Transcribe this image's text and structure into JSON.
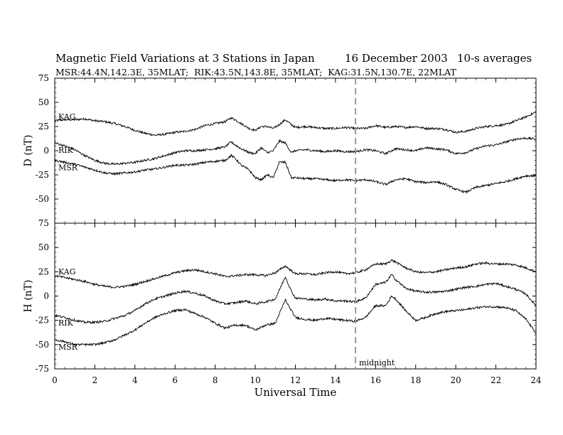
{
  "header": {
    "title": "Magnetic Field Variations at 3 Stations in Japan",
    "date": "16 December 2003",
    "averaging": "10-s averages",
    "stations": "MSR:44.4N,142.3E, 35MLAT;  RIK:43.5N,143.8E, 35MLAT;  KAG:31.5N,130.7E, 22MLAT"
  },
  "chart_data": [
    {
      "type": "line",
      "panel": "D",
      "ylabel": "D (nT)",
      "ylim": [
        -75,
        75
      ],
      "yticks": [
        -75,
        -50,
        -25,
        0,
        25,
        50,
        75
      ],
      "xlim": [
        0,
        24
      ],
      "series": [
        {
          "name": "KAG",
          "x": [
            0,
            0.5,
            1,
            1.5,
            2,
            2.5,
            3,
            3.5,
            4,
            4.5,
            5,
            5.5,
            6,
            6.5,
            7,
            7.5,
            8,
            8.5,
            8.8,
            9,
            9.3,
            9.7,
            10,
            10.3,
            10.6,
            10.9,
            11.2,
            11.5,
            11.8,
            12,
            12.5,
            13,
            13.5,
            14,
            14.5,
            15,
            15.5,
            16,
            16.5,
            17,
            17.5,
            18,
            18.5,
            19,
            19.5,
            20,
            20.5,
            21,
            21.5,
            22,
            22.5,
            23,
            23.5,
            24
          ],
          "y": [
            31,
            32,
            32,
            33,
            31,
            30,
            28,
            25,
            21,
            18,
            16,
            17,
            19,
            20,
            22,
            26,
            28,
            30,
            34,
            32,
            28,
            23,
            21,
            25,
            25,
            23,
            27,
            32,
            27,
            24,
            25,
            24,
            23,
            23,
            24,
            23,
            23,
            26,
            24,
            25,
            24,
            25,
            23,
            23,
            22,
            19,
            20,
            23,
            25,
            26,
            27,
            31,
            35,
            40
          ]
        },
        {
          "name": "RIK",
          "x": [
            0,
            0.5,
            1,
            1.5,
            2,
            2.5,
            3,
            3.5,
            4,
            4.5,
            5,
            5.5,
            6,
            6.5,
            7,
            7.5,
            8,
            8.5,
            8.8,
            9,
            9.3,
            9.7,
            10,
            10.3,
            10.6,
            10.9,
            11.2,
            11.5,
            11.8,
            12,
            12.5,
            13,
            13.5,
            14,
            14.5,
            15,
            15.5,
            16,
            16.5,
            17,
            17.5,
            18,
            18.5,
            19,
            19.5,
            20,
            20.5,
            21,
            21.5,
            22,
            22.5,
            23,
            23.5,
            24
          ],
          "y": [
            8,
            5,
            1,
            -5,
            -10,
            -13,
            -14,
            -13,
            -12,
            -10,
            -8,
            -5,
            -2,
            0,
            0,
            1,
            2,
            4,
            9,
            6,
            2,
            -2,
            -3,
            3,
            -2,
            0,
            10,
            8,
            -2,
            0,
            1,
            0,
            -1,
            0,
            -1,
            -1,
            1,
            0,
            -3,
            2,
            1,
            0,
            3,
            2,
            1,
            -3,
            -2,
            2,
            5,
            6,
            9,
            12,
            13,
            12
          ]
        },
        {
          "name": "MSR",
          "x": [
            0,
            0.5,
            1,
            1.5,
            2,
            2.5,
            3,
            3.5,
            4,
            4.5,
            5,
            5.5,
            6,
            6.5,
            7,
            7.5,
            8,
            8.5,
            8.8,
            9,
            9.3,
            9.7,
            10,
            10.3,
            10.6,
            10.9,
            11.2,
            11.5,
            11.8,
            12,
            12.5,
            13,
            13.5,
            14,
            14.5,
            15,
            15.5,
            16,
            16.5,
            17,
            17.5,
            18,
            18.5,
            19,
            19.5,
            20,
            20.5,
            21,
            21.5,
            22,
            22.5,
            23,
            23.5,
            24
          ],
          "y": [
            -10,
            -12,
            -14,
            -17,
            -20,
            -23,
            -24,
            -23,
            -22,
            -20,
            -19,
            -17,
            -15,
            -15,
            -14,
            -12,
            -11,
            -10,
            -5,
            -8,
            -15,
            -20,
            -28,
            -30,
            -25,
            -28,
            -12,
            -12,
            -28,
            -28,
            -29,
            -29,
            -30,
            -31,
            -30,
            -31,
            -30,
            -32,
            -35,
            -30,
            -29,
            -32,
            -33,
            -32,
            -35,
            -40,
            -43,
            -38,
            -36,
            -34,
            -32,
            -29,
            -26,
            -26
          ]
        }
      ],
      "labels": [
        "KAG",
        "RIK",
        "MSR"
      ]
    },
    {
      "type": "line",
      "panel": "H",
      "ylabel": "H (nT)",
      "ylim": [
        -75,
        75
      ],
      "yticks": [
        -75,
        -50,
        -25,
        0,
        25,
        50,
        75
      ],
      "xlim": [
        0,
        24
      ],
      "xlabel": "Universal Time",
      "xticks": [
        0,
        2,
        4,
        6,
        8,
        10,
        12,
        14,
        16,
        18,
        20,
        22,
        24
      ],
      "series": [
        {
          "name": "KAG",
          "x": [
            0,
            0.5,
            1,
            1.5,
            2,
            2.5,
            3,
            3.5,
            4,
            4.5,
            5,
            5.5,
            6,
            6.5,
            7,
            7.5,
            8,
            8.5,
            9,
            9.5,
            10,
            10.5,
            11,
            11.5,
            11.8,
            12,
            12.5,
            13,
            13.5,
            14,
            14.5,
            15,
            15.5,
            16,
            16.5,
            16.8,
            17,
            17.5,
            18,
            18.5,
            19,
            19.5,
            20,
            20.5,
            21,
            21.5,
            22,
            22.5,
            23,
            23.5,
            24
          ],
          "y": [
            21,
            19,
            17,
            15,
            12,
            10,
            9,
            10,
            12,
            15,
            18,
            21,
            24,
            26,
            27,
            25,
            23,
            20,
            21,
            22,
            22,
            21,
            24,
            31,
            26,
            23,
            23,
            22,
            24,
            25,
            23,
            24,
            27,
            33,
            33,
            37,
            35,
            29,
            25,
            24,
            25,
            27,
            29,
            30,
            33,
            34,
            33,
            33,
            32,
            29,
            25
          ]
        },
        {
          "name": "RIK",
          "x": [
            0,
            0.5,
            1,
            1.5,
            2,
            2.5,
            3,
            3.5,
            4,
            4.5,
            5,
            5.5,
            6,
            6.5,
            7,
            7.5,
            8,
            8.5,
            9,
            9.5,
            10,
            10.5,
            11,
            11.5,
            11.8,
            12,
            12.5,
            13,
            13.5,
            14,
            14.5,
            15,
            15.5,
            16,
            16.5,
            16.8,
            17,
            17.5,
            18,
            18.5,
            19,
            19.5,
            20,
            20.5,
            21,
            21.5,
            22,
            22.5,
            23,
            23.5,
            24
          ],
          "y": [
            -20,
            -22,
            -25,
            -27,
            -27,
            -26,
            -23,
            -20,
            -15,
            -8,
            -3,
            0,
            3,
            5,
            3,
            0,
            -5,
            -8,
            -7,
            -5,
            -8,
            -6,
            -3,
            20,
            5,
            -2,
            -3,
            -4,
            -3,
            -5,
            -5,
            -6,
            -2,
            12,
            14,
            22,
            17,
            8,
            5,
            4,
            4,
            5,
            7,
            9,
            10,
            12,
            13,
            10,
            7,
            2,
            -10
          ]
        },
        {
          "name": "MSR",
          "x": [
            0,
            0.5,
            1,
            1.5,
            2,
            2.5,
            3,
            3.5,
            4,
            4.5,
            5,
            5.5,
            6,
            6.5,
            7,
            7.5,
            8,
            8.5,
            9,
            9.5,
            10,
            10.5,
            11,
            11.5,
            11.8,
            12,
            12.5,
            13,
            13.5,
            14,
            14.5,
            15,
            15.5,
            16,
            16.5,
            16.8,
            17,
            17.5,
            18,
            18.5,
            19,
            19.5,
            20,
            20.5,
            21,
            21.5,
            22,
            22.5,
            23,
            23.5,
            24
          ],
          "y": [
            -45,
            -47,
            -50,
            -50,
            -50,
            -48,
            -45,
            -40,
            -35,
            -28,
            -22,
            -18,
            -15,
            -14,
            -18,
            -22,
            -28,
            -33,
            -30,
            -30,
            -35,
            -30,
            -28,
            -4,
            -15,
            -22,
            -24,
            -25,
            -23,
            -24,
            -25,
            -26,
            -22,
            -10,
            -10,
            0,
            -3,
            -15,
            -25,
            -22,
            -18,
            -16,
            -15,
            -14,
            -12,
            -11,
            -11,
            -12,
            -15,
            -24,
            -38
          ]
        }
      ],
      "labels": [
        "KAG",
        "RIK",
        "MSR"
      ]
    }
  ],
  "annotation": {
    "midnight_label": "midnight",
    "midnight_ut": 15
  }
}
